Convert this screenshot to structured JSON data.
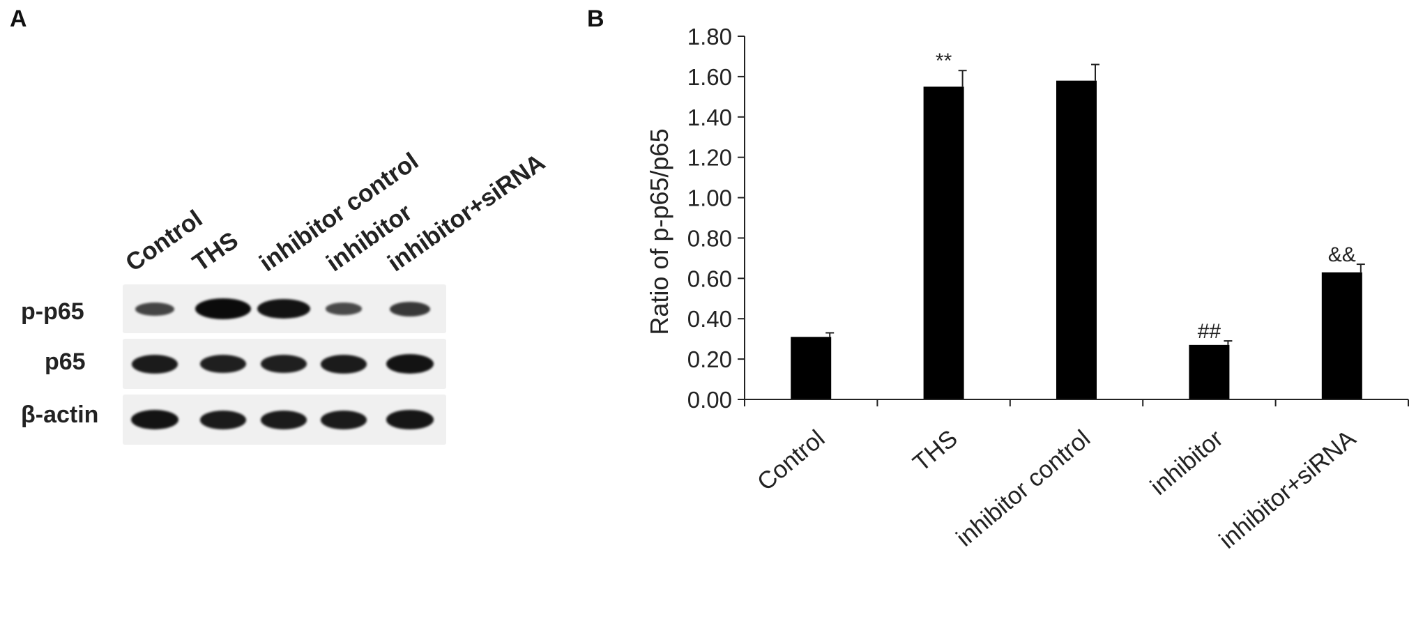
{
  "panels": {
    "a_letter": "A",
    "b_letter": "B"
  },
  "blot": {
    "lanes": [
      "Control",
      "THS",
      "inhibitor control",
      "inhibitor",
      "inhibitor+siRNA"
    ],
    "rows": [
      {
        "label": "p-p65",
        "intensity": [
          0.45,
          1.0,
          0.92,
          0.38,
          0.55
        ]
      },
      {
        "label": "p65",
        "intensity": [
          0.85,
          0.8,
          0.8,
          0.85,
          0.9
        ]
      },
      {
        "label": "β-actin",
        "intensity": [
          0.9,
          0.85,
          0.85,
          0.85,
          0.88
        ]
      }
    ],
    "band_color": "#0b0b0b",
    "strip_color": "#f0f0f0"
  },
  "chart_data": {
    "type": "bar",
    "categories": [
      "Control",
      "THS",
      "inhibitor control",
      "inhibitor",
      "inhibitor+siRNA"
    ],
    "values": [
      0.31,
      1.55,
      1.58,
      0.27,
      0.63
    ],
    "errors": [
      0.02,
      0.08,
      0.08,
      0.02,
      0.04
    ],
    "annotations": [
      "",
      "**",
      "",
      "##",
      "&&"
    ],
    "title": "",
    "xlabel": "",
    "ylabel": "Ratio of p-p65/p65",
    "ylim": [
      0,
      1.8
    ],
    "yticks": [
      "0.00",
      "0.20",
      "0.40",
      "0.60",
      "0.80",
      "1.00",
      "1.20",
      "1.40",
      "1.60",
      "1.80"
    ],
    "grid": false,
    "legend": "none",
    "bar_color": "#000000"
  }
}
